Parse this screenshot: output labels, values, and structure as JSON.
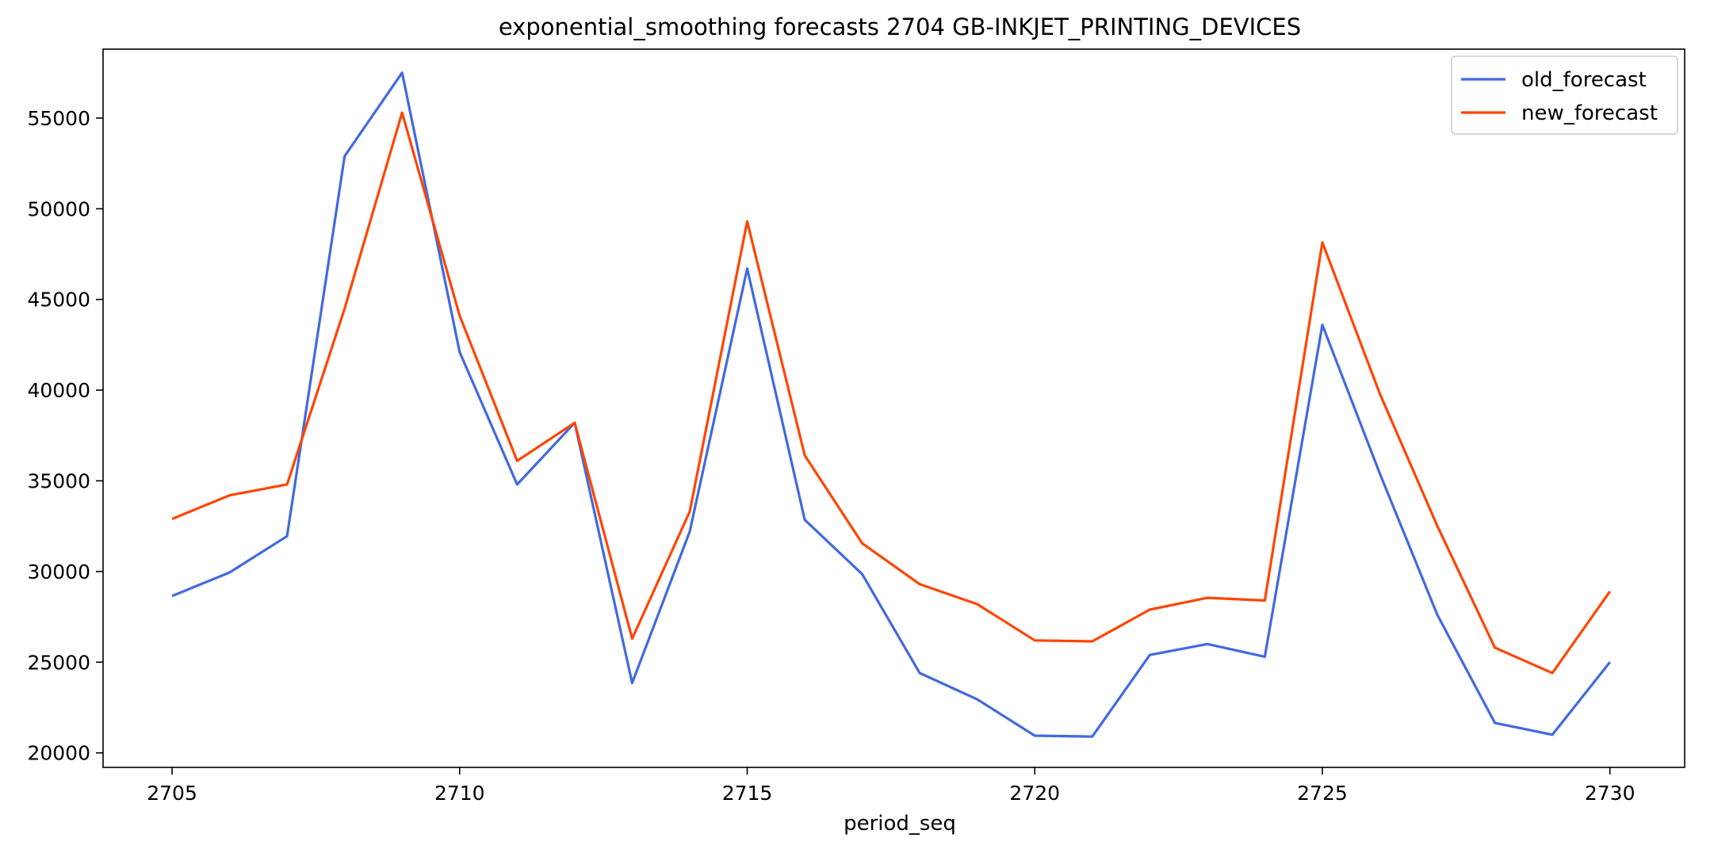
{
  "chart_data": {
    "type": "line",
    "title": "exponential_smoothing forecasts 2704 GB-INKJET_PRINTING_DEVICES",
    "xlabel": "period_seq",
    "ylabel": "",
    "x": [
      2705,
      2706,
      2707,
      2708,
      2709,
      2710,
      2711,
      2712,
      2713,
      2714,
      2715,
      2716,
      2717,
      2718,
      2719,
      2720,
      2721,
      2722,
      2723,
      2724,
      2725,
      2726,
      2727,
      2728,
      2729,
      2730
    ],
    "xlim": [
      2703.8,
      2731.3
    ],
    "ylim": [
      19200,
      58800
    ],
    "x_ticks": [
      2705,
      2710,
      2715,
      2720,
      2725,
      2730
    ],
    "y_ticks": [
      20000,
      25000,
      30000,
      35000,
      40000,
      45000,
      50000,
      55000
    ],
    "grid": false,
    "legend": "top-right",
    "series": [
      {
        "name": "old_forecast",
        "color": "#4169e1",
        "values": [
          28650,
          29950,
          31950,
          52900,
          57500,
          42100,
          34800,
          38200,
          23850,
          32200,
          46700,
          32850,
          29850,
          24400,
          22950,
          20950,
          20900,
          25400,
          26000,
          25300,
          43600,
          35400,
          27600,
          21650,
          21000,
          25000
        ]
      },
      {
        "name": "new_forecast",
        "color": "#ff4500",
        "values": [
          32900,
          34200,
          34800,
          44500,
          55300,
          44100,
          36100,
          38200,
          26300,
          33300,
          49300,
          36400,
          31550,
          29300,
          28200,
          26200,
          26150,
          27900,
          28550,
          28400,
          48150,
          39800,
          32500,
          25800,
          24400,
          28900
        ]
      }
    ]
  }
}
